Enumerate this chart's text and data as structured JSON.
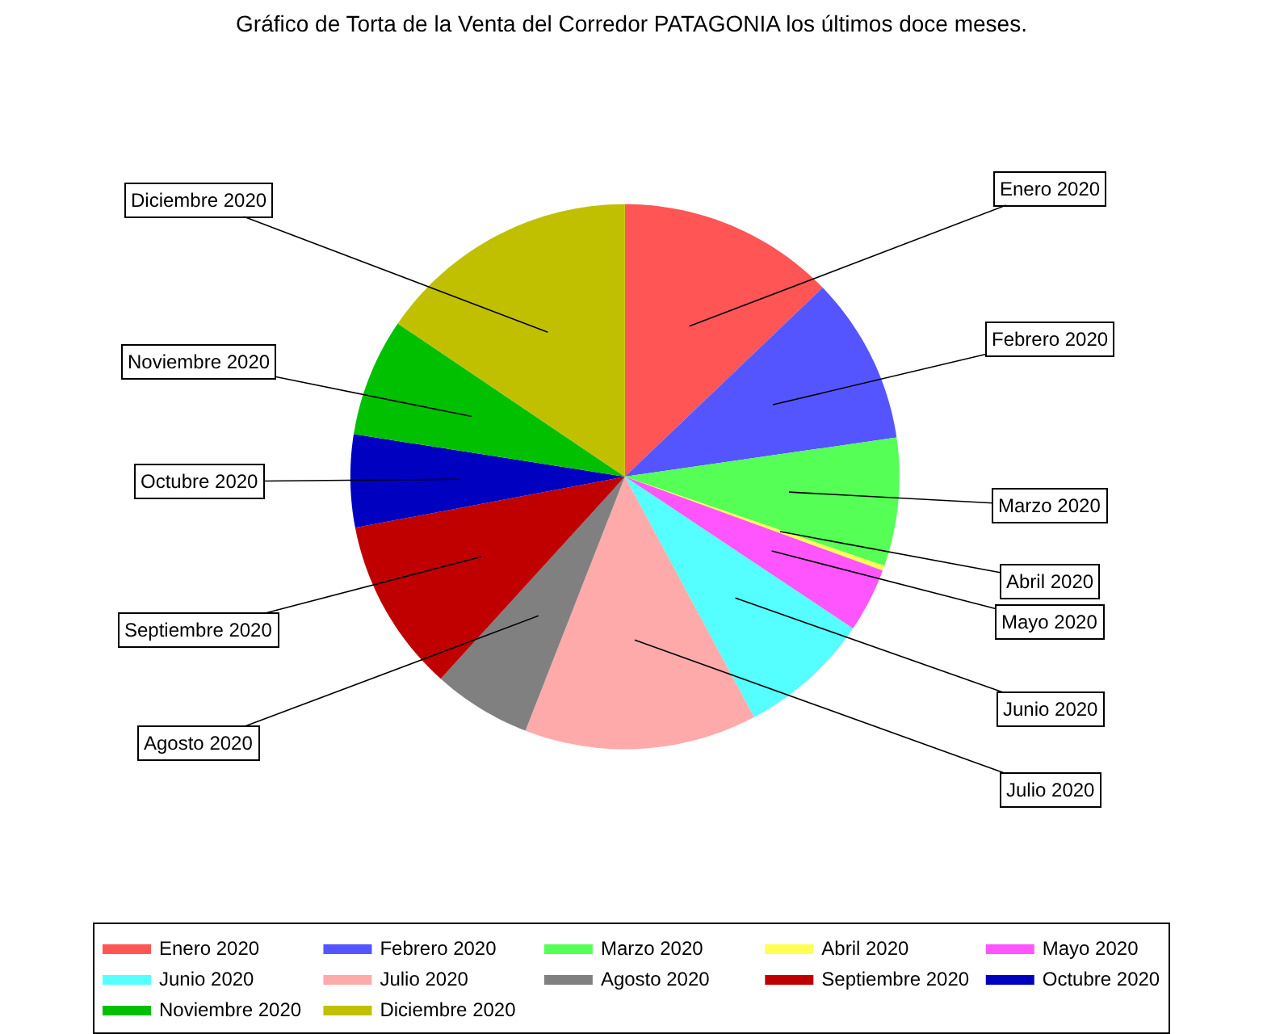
{
  "chart_data": {
    "type": "pie",
    "title": "Gráfico de Torta de la Venta del Corredor PATAGONIA los últimos doce meses.",
    "categories": [
      "Enero 2020",
      "Febrero 2020",
      "Marzo 2020",
      "Abril 2020",
      "Mayo 2020",
      "Junio 2020",
      "Julio 2020",
      "Agosto 2020",
      "Septiembre 2020",
      "Octubre 2020",
      "Noviembre 2020",
      "Diciembre 2020"
    ],
    "values": [
      12.8,
      9.9,
      7.6,
      0.3,
      3.8,
      7.8,
      13.7,
      5.8,
      10.3,
      5.5,
      7.0,
      15.5
    ],
    "colors": [
      "#ff5555",
      "#5555ff",
      "#55ff55",
      "#ffff55",
      "#ff55ff",
      "#55ffff",
      "#ffaaaa",
      "#808080",
      "#c00000",
      "#0000c0",
      "#00c000",
      "#c0c000"
    ],
    "legend": "bottom"
  }
}
